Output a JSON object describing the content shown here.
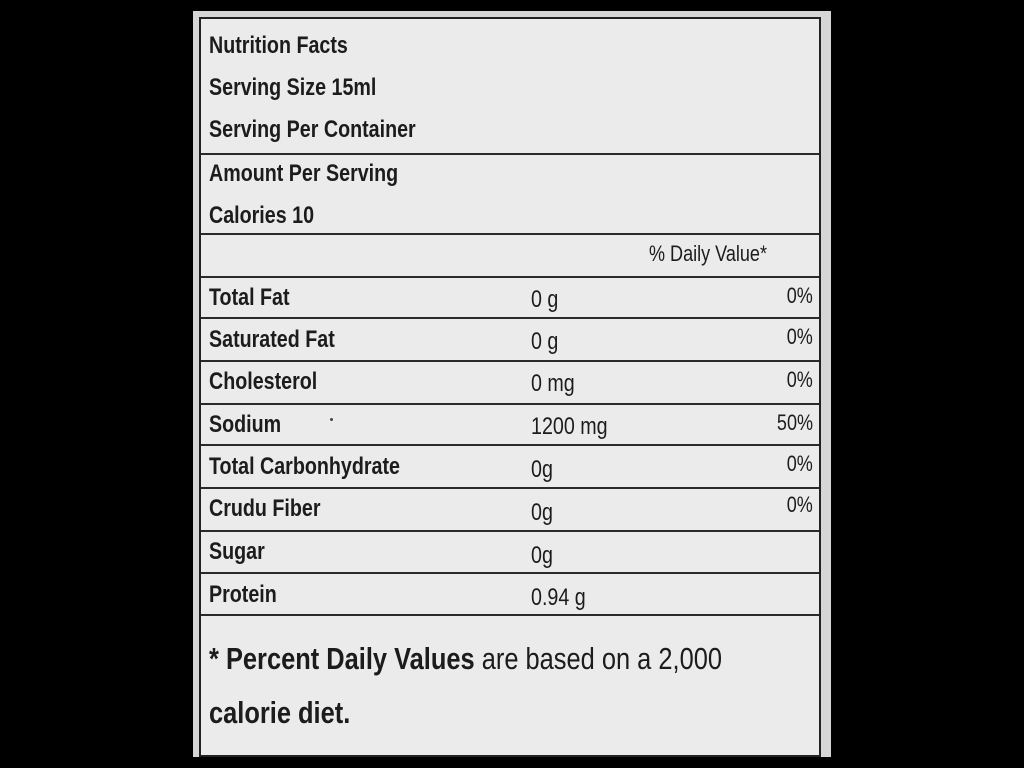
{
  "header": {
    "title": "Nutrition Facts",
    "serving_size": "Serving Size 15ml",
    "servings_per_container": "Serving Per Container",
    "amount_per_serving": "Amount Per Serving",
    "calories": "Calories 10",
    "daily_value_heading": "% Daily Value*"
  },
  "nutrients": [
    {
      "name": "Total Fat",
      "amount": "0 g",
      "dv": "0%"
    },
    {
      "name": "Saturated Fat",
      "amount": "0 g",
      "dv": "0%"
    },
    {
      "name": "Cholesterol",
      "amount": "0 mg",
      "dv": "0%"
    },
    {
      "name": "Sodium",
      "amount": "1200 mg",
      "dv": "50%"
    },
    {
      "name": "Total Carbonhydrate",
      "amount": "0g",
      "dv": "0%"
    },
    {
      "name": "Crudu Fiber",
      "amount": "0g",
      "dv": "0%"
    },
    {
      "name": "Sugar",
      "amount": "0g",
      "dv": ""
    },
    {
      "name": "Protein",
      "amount": "0.94 g",
      "dv": ""
    }
  ],
  "footnote": {
    "part1": "* Percent Daily Values",
    "part2": " are based on a 2,000",
    "part3": "calorie diet."
  }
}
